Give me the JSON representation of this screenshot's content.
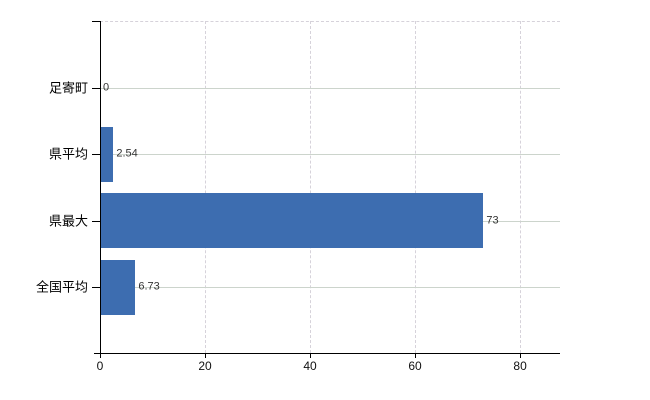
{
  "chart_data": {
    "type": "bar",
    "orientation": "horizontal",
    "title": "",
    "xlabel": "",
    "ylabel": "",
    "categories": [
      "足寄町",
      "県平均",
      "県最大",
      "全国平均"
    ],
    "values": [
      0,
      2.54,
      73,
      6.73
    ],
    "value_labels": [
      "0",
      "2.54",
      "73",
      "6.73"
    ],
    "x_ticks": [
      0,
      20,
      40,
      60,
      80
    ],
    "x_tick_labels": [
      "0",
      "20",
      "40",
      "60",
      "80"
    ],
    "xlim": [
      0,
      87.6
    ],
    "grid": true,
    "grid_style": {
      "vertical": "dashed",
      "horizontal": "solid",
      "top_border": "dashed"
    },
    "legend": false,
    "colors": {
      "bar": "#3d6db0",
      "grid_horizontal": "#ccd4cc",
      "grid_vertical": "#d6d2da",
      "axis": "#000000",
      "value_label_text": "#333333",
      "tick_label_text": "#111111",
      "background": "#ffffff"
    }
  }
}
